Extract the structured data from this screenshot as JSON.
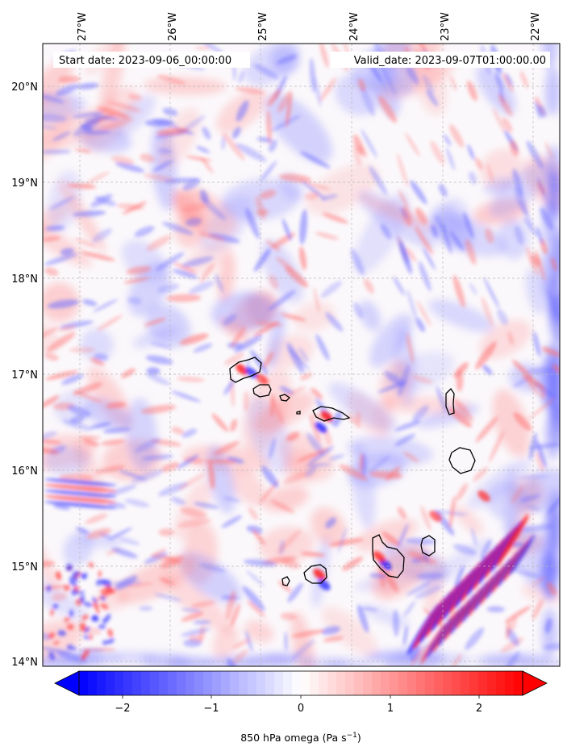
{
  "map": {
    "header_left": "Start date: 2023-09-06_00:00:00",
    "header_right": "Valid_date: 2023-09-07T01:00:00.00",
    "lon_labels": [
      "27°W",
      "26°W",
      "25°W",
      "24°W",
      "23°W",
      "22°W"
    ],
    "lat_labels": [
      "20°N",
      "19°N",
      "18°N",
      "17°N",
      "16°N",
      "15°N",
      "14°N"
    ],
    "extent": {
      "lon_min": -27.4,
      "lon_max": -21.7,
      "lat_min": 13.95,
      "lat_max": 20.4
    },
    "islands": [
      "Santo Antão",
      "São Vicente",
      "Santa Luzia",
      "São Nicolau",
      "Sal",
      "Boa Vista",
      "Maio",
      "Santiago",
      "Fogo",
      "Brava"
    ]
  },
  "colorbar": {
    "label_main": "850 hPa omega (Pa s",
    "label_sup": "−1",
    "label_end": ")",
    "ticks": [
      "−2",
      "−1",
      "0",
      "1",
      "2"
    ],
    "range": [
      -2.5,
      2.5
    ],
    "colors": {
      "negative": "#0000ff",
      "zero": "#ffffff",
      "positive": "#ff0000"
    }
  }
}
